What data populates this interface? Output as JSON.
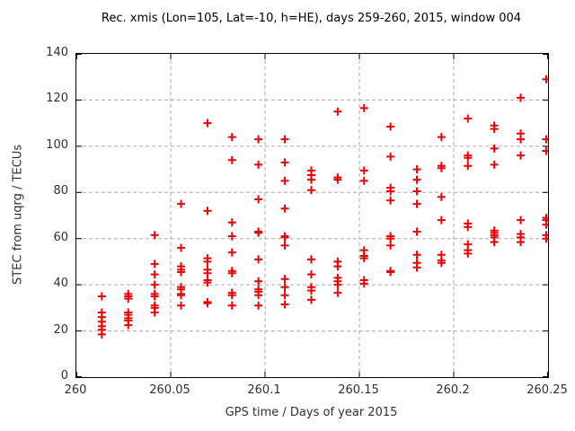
{
  "window": {
    "title": "Rec. xmis (Lon=105, Lat=-10, h=HE), days 259-260, 2015, window 004"
  },
  "colors": {
    "marker": "#f00000",
    "grid": "#aaaaaa",
    "border": "#000000",
    "background": "#ffffff",
    "text": "#303030"
  },
  "chart_data": {
    "type": "scatter",
    "title": "Rec. xmis (Lon=105, Lat=-10, h=HE), days 259-260, 2015, window 004",
    "xlabel": "GPS time / Days of year 2015",
    "ylabel": "STEC from uqrg / TECUs",
    "xlim": [
      260,
      260.25
    ],
    "ylim": [
      0,
      140
    ],
    "grid": true,
    "legend": "none",
    "marker": {
      "shape": "plus",
      "size": 9,
      "stroke_width": 2
    },
    "xticks": {
      "values": [
        260,
        260.05,
        260.1,
        260.15,
        260.2,
        260.25
      ],
      "labels": [
        "260",
        "260.05",
        "260.1",
        "260.15",
        "260.2",
        "260.25"
      ]
    },
    "yticks": {
      "values": [
        0,
        20,
        40,
        60,
        80,
        100,
        120,
        140
      ],
      "labels": [
        "0",
        "20",
        "40",
        "60",
        "80",
        "100",
        "120",
        "140"
      ]
    },
    "points": [
      [
        260.0135,
        35
      ],
      [
        260.0135,
        28
      ],
      [
        260.0135,
        26
      ],
      [
        260.0135,
        24
      ],
      [
        260.0135,
        22
      ],
      [
        260.0135,
        20.5
      ],
      [
        260.0135,
        18.5
      ],
      [
        260.0275,
        36
      ],
      [
        260.0275,
        35
      ],
      [
        260.0275,
        34
      ],
      [
        260.0275,
        28
      ],
      [
        260.0275,
        27
      ],
      [
        260.0275,
        25.5
      ],
      [
        260.0275,
        24.5
      ],
      [
        260.0275,
        22.5
      ],
      [
        260.0415,
        61.5
      ],
      [
        260.0415,
        49
      ],
      [
        260.0415,
        44.5
      ],
      [
        260.0415,
        40
      ],
      [
        260.0415,
        36
      ],
      [
        260.0415,
        35
      ],
      [
        260.0415,
        31
      ],
      [
        260.0415,
        30
      ],
      [
        260.0415,
        28
      ],
      [
        260.0555,
        75
      ],
      [
        260.0555,
        56
      ],
      [
        260.0555,
        48
      ],
      [
        260.0555,
        46.5
      ],
      [
        260.0555,
        45.5
      ],
      [
        260.0555,
        39
      ],
      [
        260.0555,
        38
      ],
      [
        260.0555,
        36
      ],
      [
        260.0555,
        35.5
      ],
      [
        260.0555,
        31
      ],
      [
        260.0695,
        110
      ],
      [
        260.0695,
        72
      ],
      [
        260.0695,
        51.5
      ],
      [
        260.0695,
        50
      ],
      [
        260.0695,
        46.5
      ],
      [
        260.0695,
        45
      ],
      [
        260.0695,
        42
      ],
      [
        260.0695,
        41
      ],
      [
        260.0695,
        32.5
      ],
      [
        260.0695,
        32
      ],
      [
        260.0825,
        104
      ],
      [
        260.0825,
        94
      ],
      [
        260.0825,
        67
      ],
      [
        260.0825,
        61
      ],
      [
        260.0825,
        54
      ],
      [
        260.0825,
        46
      ],
      [
        260.0825,
        45
      ],
      [
        260.0825,
        36.5
      ],
      [
        260.0825,
        35.5
      ],
      [
        260.0825,
        31
      ],
      [
        260.0965,
        103
      ],
      [
        260.0965,
        92
      ],
      [
        260.0965,
        77
      ],
      [
        260.0965,
        63
      ],
      [
        260.0965,
        62.5
      ],
      [
        260.0965,
        51
      ],
      [
        260.0965,
        41.5
      ],
      [
        260.0965,
        38
      ],
      [
        260.0965,
        37
      ],
      [
        260.0965,
        35.5
      ],
      [
        260.0965,
        31
      ],
      [
        260.1105,
        103
      ],
      [
        260.1105,
        93
      ],
      [
        260.1105,
        85
      ],
      [
        260.1105,
        73
      ],
      [
        260.1105,
        61
      ],
      [
        260.1105,
        60.5
      ],
      [
        260.1105,
        57
      ],
      [
        260.1105,
        42.5
      ],
      [
        260.1105,
        39
      ],
      [
        260.1105,
        35.5
      ],
      [
        260.1105,
        31.5
      ],
      [
        260.1245,
        89.5
      ],
      [
        260.1245,
        87.5
      ],
      [
        260.1245,
        85.5
      ],
      [
        260.1245,
        81
      ],
      [
        260.1245,
        51
      ],
      [
        260.1245,
        44.5
      ],
      [
        260.1245,
        39
      ],
      [
        260.1245,
        37.5
      ],
      [
        260.1245,
        33.5
      ],
      [
        260.1385,
        115
      ],
      [
        260.1385,
        86.5
      ],
      [
        260.1385,
        85.5
      ],
      [
        260.1385,
        50
      ],
      [
        260.1385,
        48
      ],
      [
        260.1385,
        43
      ],
      [
        260.1385,
        41.5
      ],
      [
        260.1385,
        40
      ],
      [
        260.1385,
        36.5
      ],
      [
        260.1525,
        116.5
      ],
      [
        260.1525,
        89.5
      ],
      [
        260.1525,
        85
      ],
      [
        260.1525,
        55
      ],
      [
        260.1525,
        52.5
      ],
      [
        260.1525,
        51.5
      ],
      [
        260.1525,
        42
      ],
      [
        260.1525,
        40.5
      ],
      [
        260.1665,
        108.5
      ],
      [
        260.1665,
        95.5
      ],
      [
        260.1665,
        82
      ],
      [
        260.1665,
        80.5
      ],
      [
        260.1665,
        76.5
      ],
      [
        260.1665,
        61
      ],
      [
        260.1665,
        60
      ],
      [
        260.1665,
        57
      ],
      [
        260.1665,
        46
      ],
      [
        260.1665,
        45.5
      ],
      [
        260.1805,
        90
      ],
      [
        260.1805,
        85.5
      ],
      [
        260.1805,
        80.5
      ],
      [
        260.1805,
        75
      ],
      [
        260.1805,
        63
      ],
      [
        260.1805,
        53
      ],
      [
        260.1805,
        49.5
      ],
      [
        260.1805,
        47.5
      ],
      [
        260.1935,
        104
      ],
      [
        260.1935,
        91.5
      ],
      [
        260.1935,
        90.5
      ],
      [
        260.1935,
        78
      ],
      [
        260.1935,
        68
      ],
      [
        260.1935,
        53
      ],
      [
        260.1935,
        50.5
      ],
      [
        260.1935,
        49.5
      ],
      [
        260.2075,
        112
      ],
      [
        260.2075,
        96
      ],
      [
        260.2075,
        95
      ],
      [
        260.2075,
        91.5
      ],
      [
        260.2075,
        66.5
      ],
      [
        260.2075,
        65
      ],
      [
        260.2075,
        57.5
      ],
      [
        260.2075,
        55
      ],
      [
        260.2075,
        53.5
      ],
      [
        260.2215,
        109
      ],
      [
        260.2215,
        107.5
      ],
      [
        260.2215,
        99
      ],
      [
        260.2215,
        92
      ],
      [
        260.2215,
        63.5
      ],
      [
        260.2215,
        62.5
      ],
      [
        260.2215,
        61.5
      ],
      [
        260.2215,
        60.5
      ],
      [
        260.2215,
        58.5
      ],
      [
        260.2355,
        121
      ],
      [
        260.2355,
        105.5
      ],
      [
        260.2355,
        103
      ],
      [
        260.2355,
        96
      ],
      [
        260.2355,
        68
      ],
      [
        260.2355,
        62
      ],
      [
        260.2355,
        60.5
      ],
      [
        260.2355,
        58.5
      ],
      [
        260.249,
        129
      ],
      [
        260.249,
        103
      ],
      [
        260.249,
        98
      ],
      [
        260.249,
        69
      ],
      [
        260.249,
        68
      ],
      [
        260.249,
        66
      ],
      [
        260.249,
        61.5
      ],
      [
        260.249,
        60
      ]
    ]
  }
}
